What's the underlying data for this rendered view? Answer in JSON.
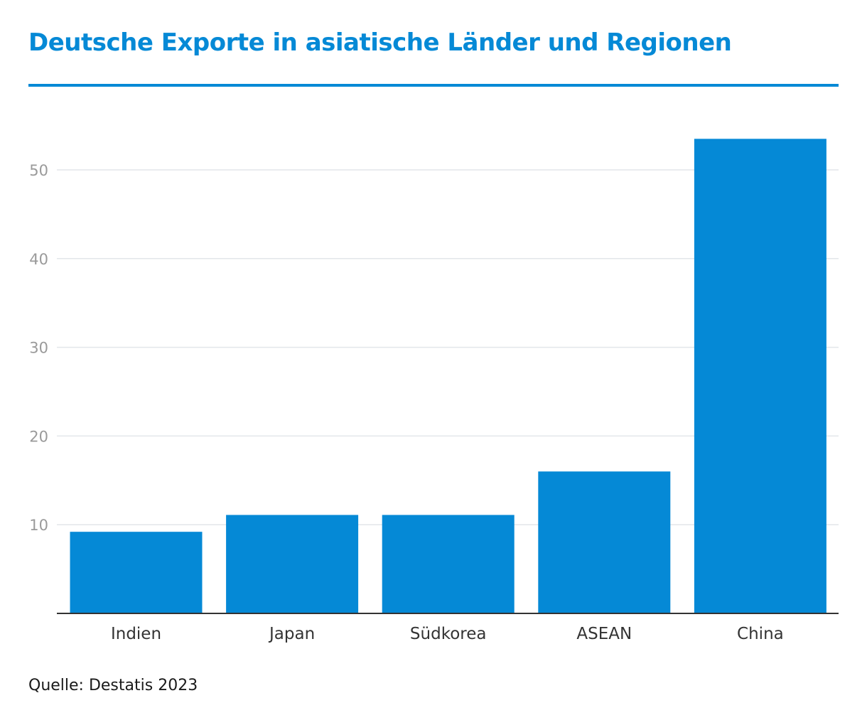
{
  "header": {
    "title": "Deutsche Exporte in asiatische Länder und Regionen"
  },
  "footer": {
    "source": "Quelle: Destatis 2023"
  },
  "colors": {
    "accent": "#0589d6",
    "bar": "#0589d6",
    "grid": "#e3e6ea",
    "tick_text": "#9a9a9a",
    "category_text": "#333333",
    "baseline": "#333333"
  },
  "chart_data": {
    "type": "bar",
    "title": "Deutsche Exporte in asiatische Länder und Regionen",
    "xlabel": "",
    "ylabel": "",
    "categories": [
      "Indien",
      "Japan",
      "Südkorea",
      "ASEAN",
      "China"
    ],
    "values": [
      9.2,
      11.1,
      11.1,
      16.0,
      53.5
    ],
    "ylim": [
      0,
      55
    ],
    "yticks": [
      10,
      20,
      30,
      40,
      50
    ],
    "grid": true,
    "legend": "none"
  }
}
